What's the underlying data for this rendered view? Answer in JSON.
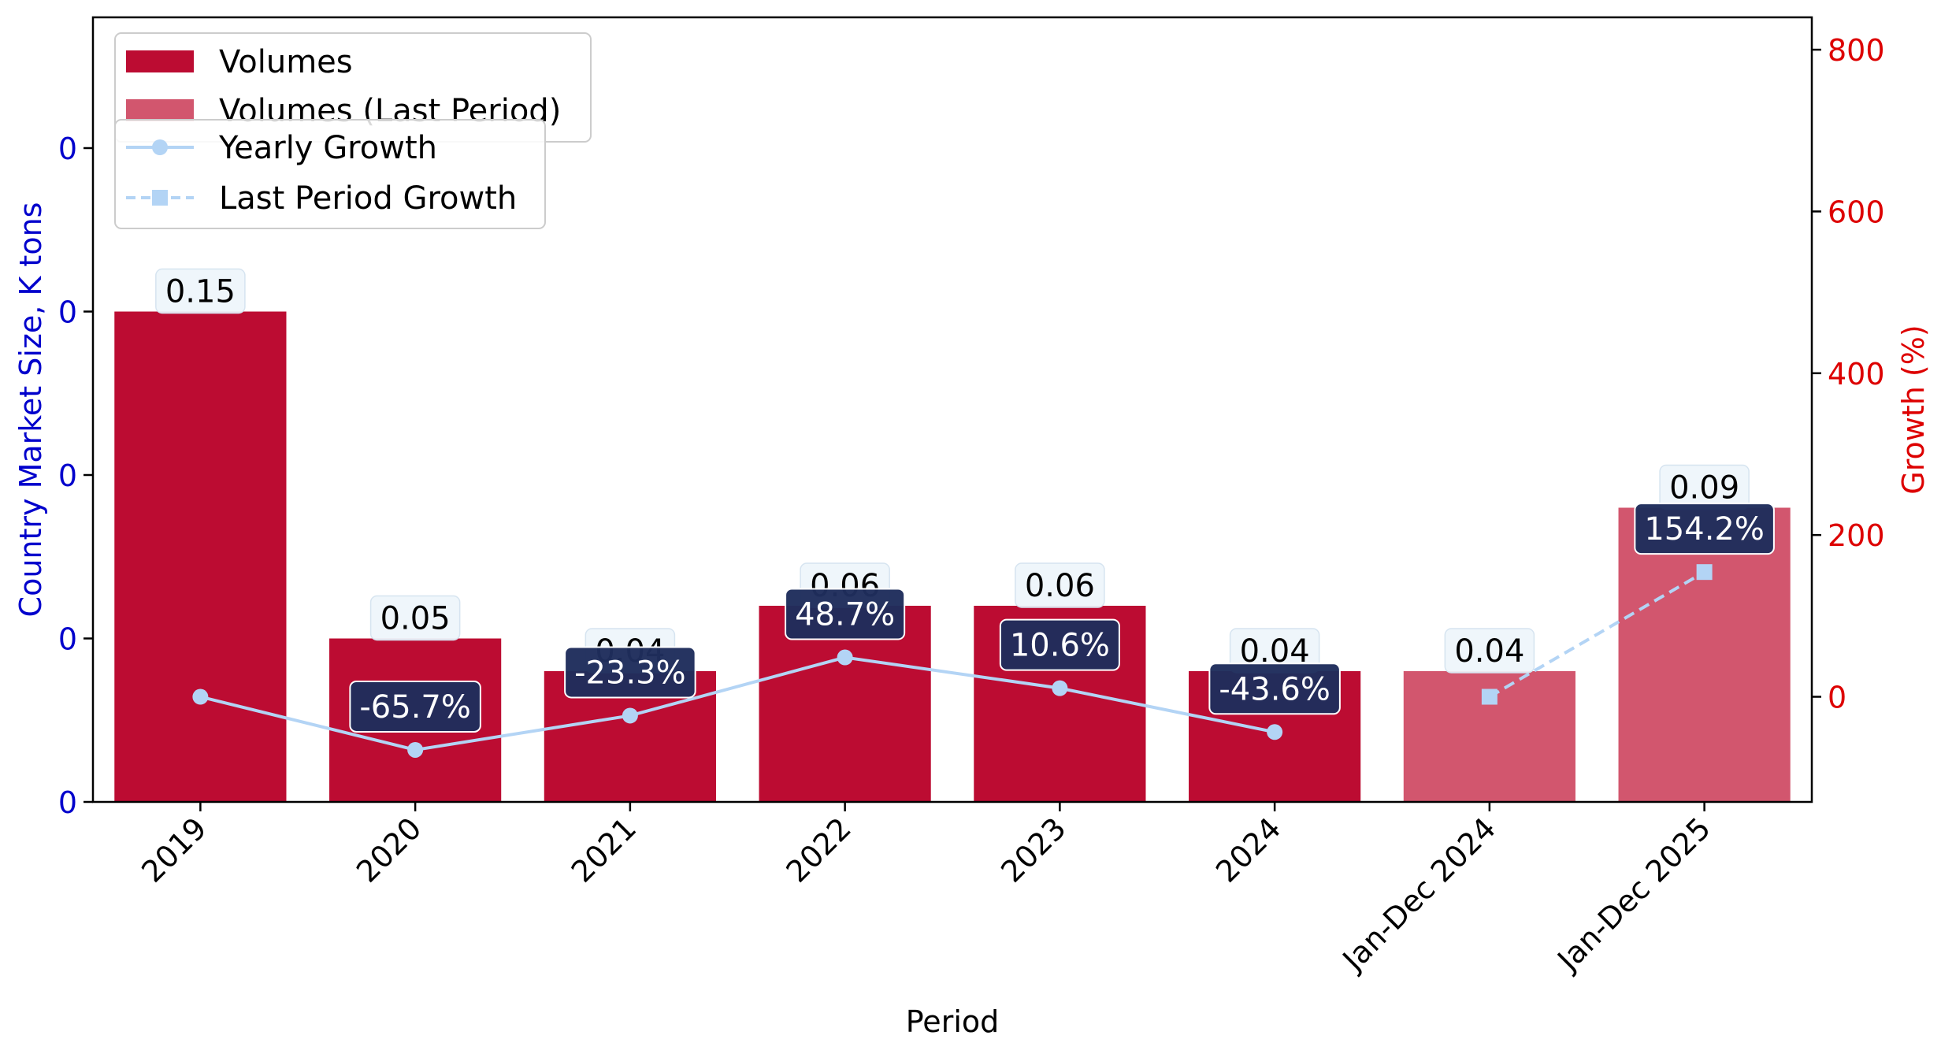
{
  "chart_data": {
    "type": "bar",
    "categories": [
      "2019",
      "2020",
      "2021",
      "2022",
      "2023",
      "2024",
      "Jan-Dec 2024",
      "Jan-Dec 2025"
    ],
    "series": [
      {
        "name": "Volumes",
        "type": "bar",
        "axis": "left",
        "color": "#bc0c32",
        "values": [
          0.15,
          0.05,
          0.04,
          0.06,
          0.06,
          0.04,
          null,
          null
        ],
        "labels": [
          "0.15",
          "0.05",
          "0.04",
          "0.06",
          "0.06",
          "0.04",
          "",
          ""
        ]
      },
      {
        "name": "Volumes (Last Period)",
        "type": "bar",
        "axis": "left",
        "color": "#d2566e",
        "values": [
          null,
          null,
          null,
          null,
          null,
          null,
          0.04,
          0.09
        ],
        "labels": [
          "",
          "",
          "",
          "",
          "",
          "",
          "0.04",
          "0.09"
        ]
      },
      {
        "name": "Yearly Growth",
        "type": "line",
        "axis": "right",
        "color": "#b3d4f5",
        "marker": "circle",
        "values": [
          0,
          -65.7,
          -23.3,
          48.7,
          10.6,
          -43.6,
          null,
          null
        ],
        "labels": [
          "",
          "-65.7%",
          "-23.3%",
          "48.7%",
          "10.6%",
          "-43.6%",
          "",
          ""
        ]
      },
      {
        "name": "Last Period Growth",
        "type": "line",
        "axis": "right",
        "color": "#b3d4f5",
        "marker": "square",
        "dashed": true,
        "values": [
          null,
          null,
          null,
          null,
          null,
          null,
          0,
          154.2
        ],
        "labels": [
          "",
          "",
          "",
          "",
          "",
          "",
          "",
          "154.2%"
        ]
      }
    ],
    "xlabel": "Period",
    "ylabel": "Country Market Size, K tons",
    "y2label": "Growth (%)",
    "ylim": [
      0,
      0.24
    ],
    "yticks": [
      0,
      0.05,
      0.1,
      0.15,
      0.2
    ],
    "ytick_labels": [
      "0",
      "0",
      "0",
      "0",
      "0"
    ],
    "y2lim": [
      -130,
      840
    ],
    "y2ticks": [
      0,
      200,
      400,
      600,
      800
    ],
    "y2tick_labels": [
      "0",
      "200",
      "400",
      "600",
      "800"
    ],
    "grid": false,
    "legend_placement": "top-left",
    "left_axis_color": "#0000cc",
    "right_axis_color": "#dd0000",
    "growth_label_bg": "#1f2d5c",
    "value_label_bg": "#eef5fb"
  }
}
